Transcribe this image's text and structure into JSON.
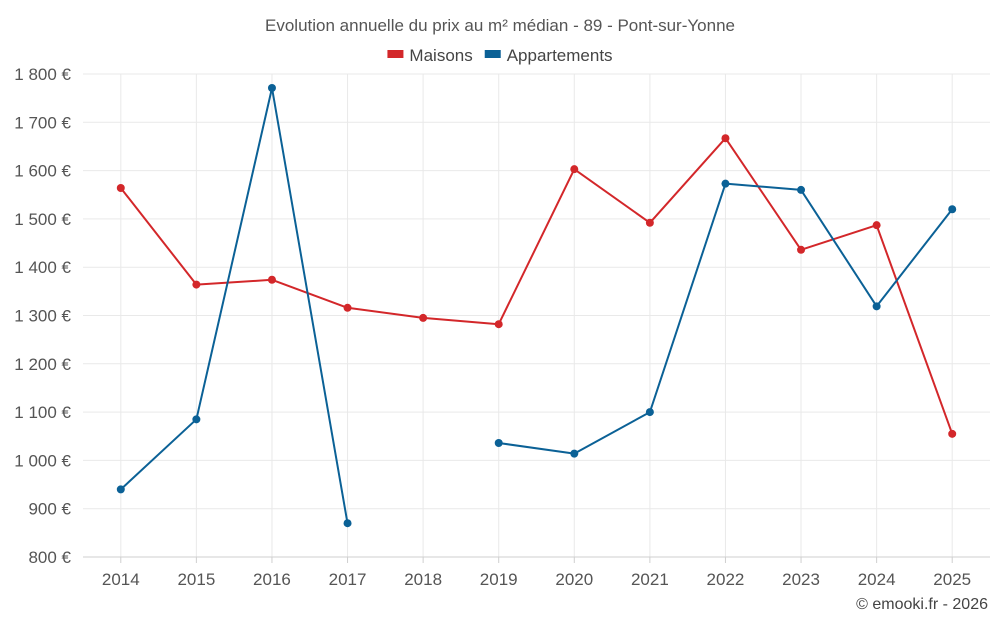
{
  "chart_data": {
    "type": "line",
    "title": "Evolution annuelle du prix au m² médian - 89 - Pont-sur-Yonne",
    "categories": [
      "2014",
      "2015",
      "2016",
      "2017",
      "2018",
      "2019",
      "2020",
      "2021",
      "2022",
      "2023",
      "2024",
      "2025"
    ],
    "series": [
      {
        "name": "Maisons",
        "color": "#d3272a",
        "values": [
          1564,
          1364,
          1374,
          1316,
          1295,
          1282,
          1603,
          1492,
          1667,
          1436,
          1487,
          1055
        ]
      },
      {
        "name": "Appartements",
        "color": "#0b6196",
        "values": [
          940,
          1085,
          1771,
          870,
          null,
          1036,
          1014,
          1100,
          1573,
          1560,
          1319,
          1520
        ]
      }
    ],
    "ylim": [
      800,
      1800
    ],
    "yticks": [
      800,
      900,
      1000,
      1100,
      1200,
      1300,
      1400,
      1500,
      1600,
      1700,
      1800
    ],
    "ytick_labels": [
      "800 €",
      "900 €",
      "1 000 €",
      "1 100 €",
      "1 200 €",
      "1 300 €",
      "1 400 €",
      "1 500 €",
      "1 600 €",
      "1 700 €",
      "1 800 €"
    ],
    "xlabel": "",
    "ylabel": "",
    "grid": true,
    "legend": "top-center"
  },
  "credit": "© emooki.fr - 2026"
}
